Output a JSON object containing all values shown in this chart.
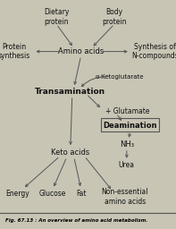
{
  "bg_color": "#eae7d8",
  "fig_bg": "#c8c5b5",
  "nodes": {
    "dietary_protein": [
      0.32,
      0.925,
      "Dietary\nprotein",
      "center",
      "normal",
      5.5
    ],
    "body_protein": [
      0.65,
      0.925,
      "Body\nprotein",
      "center",
      "normal",
      5.5
    ],
    "amino_acids": [
      0.46,
      0.775,
      "Amino acids",
      "center",
      "normal",
      6.0
    ],
    "protein_synthesis": [
      0.08,
      0.775,
      "Protein\nsynthesis",
      "center",
      "normal",
      5.5
    ],
    "synthesis_n": [
      0.88,
      0.775,
      "Synthesis of\nN-compounds",
      "center",
      "normal",
      5.5
    ],
    "alpha_keto": [
      0.68,
      0.665,
      "α-Ketoglutarate",
      "center",
      "normal",
      5.0
    ],
    "transamination": [
      0.4,
      0.6,
      "Transamination",
      "center",
      "bold",
      6.5
    ],
    "glutamate": [
      0.6,
      0.515,
      "+ Glutamate",
      "left",
      "normal",
      5.5
    ],
    "deamination": [
      0.74,
      0.45,
      "Deamination",
      "center",
      "bold",
      6.0
    ],
    "nh3": [
      0.72,
      0.37,
      "NH₃",
      "center",
      "normal",
      6.0
    ],
    "urea": [
      0.72,
      0.28,
      "Urea",
      "center",
      "normal",
      5.5
    ],
    "keto_acids": [
      0.4,
      0.335,
      "Keto acids",
      "center",
      "normal",
      6.0
    ],
    "energy": [
      0.1,
      0.155,
      "Energy",
      "center",
      "normal",
      5.5
    ],
    "glucose": [
      0.3,
      0.155,
      "Glucose",
      "center",
      "normal",
      5.5
    ],
    "fat": [
      0.46,
      0.155,
      "Fat",
      "center",
      "normal",
      5.5
    ],
    "non_essential": [
      0.71,
      0.14,
      "Non-essential\namino acids",
      "center",
      "normal",
      5.5
    ]
  },
  "caption": "Fig. 67.13 : An overview of amino acid metabolism.",
  "line_color": "#555555"
}
